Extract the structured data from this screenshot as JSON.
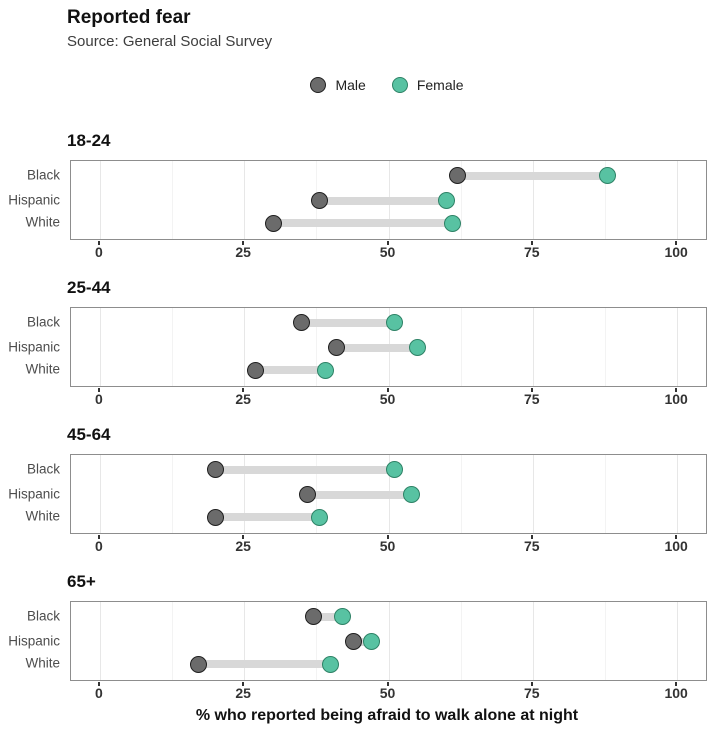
{
  "title": "Reported fear",
  "subtitle": "Source: General Social Survey",
  "legend": {
    "male_label": "Male",
    "female_label": "Female"
  },
  "x_axis_title": "% who reported being afraid to walk alone at night",
  "colors": {
    "male_fill": "#6b6b6b",
    "male_stroke": "#1f1f1f",
    "female_fill": "#58c2a2",
    "female_stroke": "#2e8266",
    "segment": "#d8d8d8",
    "grid_major": "#e7e7e7",
    "grid_minor": "#f3f3f3",
    "panel_border": "#8d8d8d",
    "tick_label": "#333333",
    "category_label": "#4d4d4d"
  },
  "chart_data": {
    "type": "dumbbell",
    "title": "Reported fear",
    "subtitle": "Source: General Social Survey",
    "xlabel": "% who reported being afraid to walk alone at night",
    "legend_entries": [
      "Male",
      "Female"
    ],
    "legend_position": "top-center",
    "grid": true,
    "x_ticks": [
      0,
      25,
      50,
      75,
      100
    ],
    "minor_gridlines": [
      12.5,
      37.5,
      62.5,
      87.5
    ],
    "xlim": [
      -5,
      105
    ],
    "categories": [
      "Black",
      "Hispanic",
      "White"
    ],
    "facets": [
      {
        "label": "18-24",
        "rows": [
          {
            "category": "Black",
            "male": 62,
            "female": 88
          },
          {
            "category": "Hispanic",
            "male": 38,
            "female": 60
          },
          {
            "category": "White",
            "male": 30,
            "female": 61
          }
        ]
      },
      {
        "label": "25-44",
        "rows": [
          {
            "category": "Black",
            "male": 35,
            "female": 51
          },
          {
            "category": "Hispanic",
            "male": 41,
            "female": 55
          },
          {
            "category": "White",
            "male": 27,
            "female": 39
          }
        ]
      },
      {
        "label": "45-64",
        "rows": [
          {
            "category": "Black",
            "male": 20,
            "female": 51
          },
          {
            "category": "Hispanic",
            "male": 36,
            "female": 54
          },
          {
            "category": "White",
            "male": 20,
            "female": 38
          }
        ]
      },
      {
        "label": "65+",
        "rows": [
          {
            "category": "Black",
            "male": 37,
            "female": 42
          },
          {
            "category": "Hispanic",
            "male": 44,
            "female": 47
          },
          {
            "category": "White",
            "male": 17,
            "female": 40
          }
        ]
      }
    ]
  }
}
